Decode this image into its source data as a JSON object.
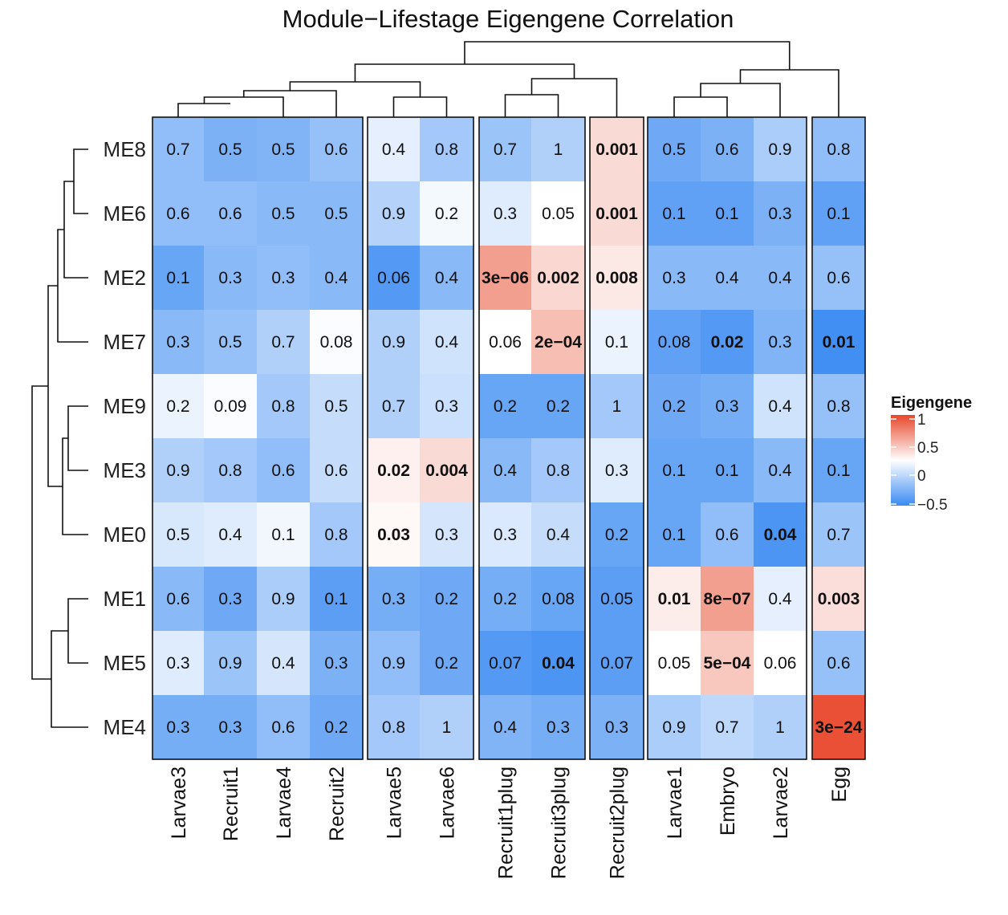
{
  "chart_data": {
    "type": "heatmap",
    "title": "Module−Lifestage Eigengene Correlation",
    "rows": [
      "ME8",
      "ME6",
      "ME2",
      "ME7",
      "ME9",
      "ME3",
      "ME0",
      "ME1",
      "ME5",
      "ME4"
    ],
    "columns": [
      "Larvae3",
      "Recruit1",
      "Larvae4",
      "Recruit2",
      "Larvae5",
      "Larvae6",
      "Recruit1plug",
      "Recruit3plug",
      "Recruit2plug",
      "Larvae1",
      "Embryo",
      "Larvae2",
      "Egg"
    ],
    "column_groups": [
      [
        0,
        3
      ],
      [
        4,
        5
      ],
      [
        6,
        7
      ],
      [
        8,
        8
      ],
      [
        9,
        11
      ],
      [
        12,
        12
      ]
    ],
    "legend": {
      "title": "Eigengene",
      "ticks": [
        "1",
        "0.5",
        "0",
        "−0.5"
      ],
      "colors": {
        "high": "#e8472a",
        "mid": "#ffffff",
        "low": "#3a8af2"
      }
    },
    "cells": [
      [
        {
          "label": "0.7",
          "value": -0.42
        },
        {
          "label": "0.5",
          "value": -0.5
        },
        {
          "label": "0.5",
          "value": -0.48
        },
        {
          "label": "0.6",
          "value": -0.4
        },
        {
          "label": "0.4",
          "value": -0.1
        },
        {
          "label": "0.8",
          "value": -0.35
        },
        {
          "label": "0.7",
          "value": -0.38
        },
        {
          "label": "1",
          "value": -0.3
        },
        {
          "label": "0.001",
          "value": 0.2,
          "bold": true
        },
        {
          "label": "0.5",
          "value": -0.55
        },
        {
          "label": "0.6",
          "value": -0.5
        },
        {
          "label": "0.9",
          "value": -0.32
        },
        {
          "label": "0.8",
          "value": -0.42
        }
      ],
      [
        {
          "label": "0.6",
          "value": -0.42
        },
        {
          "label": "0.6",
          "value": -0.42
        },
        {
          "label": "0.5",
          "value": -0.45
        },
        {
          "label": "0.5",
          "value": -0.45
        },
        {
          "label": "0.9",
          "value": -0.28
        },
        {
          "label": "0.2",
          "value": -0.04
        },
        {
          "label": "0.3",
          "value": -0.12
        },
        {
          "label": "0.05",
          "value": 0.0
        },
        {
          "label": "0.001",
          "value": 0.2,
          "bold": true
        },
        {
          "label": "0.1",
          "value": -0.6
        },
        {
          "label": "0.1",
          "value": -0.6
        },
        {
          "label": "0.3",
          "value": -0.5
        },
        {
          "label": "0.1",
          "value": -0.6
        }
      ],
      [
        {
          "label": "0.1",
          "value": -0.58
        },
        {
          "label": "0.3",
          "value": -0.45
        },
        {
          "label": "0.3",
          "value": -0.42
        },
        {
          "label": "0.4",
          "value": -0.45
        },
        {
          "label": "0.06",
          "value": -0.65
        },
        {
          "label": "0.4",
          "value": -0.45
        },
        {
          "label": "3e−06",
          "value": 0.52,
          "bold": true
        },
        {
          "label": "0.002",
          "value": 0.22,
          "bold": true
        },
        {
          "label": "0.008",
          "value": 0.12,
          "bold": true
        },
        {
          "label": "0.3",
          "value": -0.45
        },
        {
          "label": "0.4",
          "value": -0.45
        },
        {
          "label": "0.4",
          "value": -0.45
        },
        {
          "label": "0.6",
          "value": -0.4
        }
      ],
      [
        {
          "label": "0.3",
          "value": -0.45
        },
        {
          "label": "0.5",
          "value": -0.4
        },
        {
          "label": "0.7",
          "value": -0.3
        },
        {
          "label": "0.08",
          "value": -0.02
        },
        {
          "label": "0.9",
          "value": -0.3
        },
        {
          "label": "0.4",
          "value": -0.18
        },
        {
          "label": "0.06",
          "value": 0.0
        },
        {
          "label": "2e−04",
          "value": 0.35,
          "bold": true
        },
        {
          "label": "0.1",
          "value": -0.08
        },
        {
          "label": "0.08",
          "value": -0.6
        },
        {
          "label": "0.02",
          "value": -0.65,
          "bold": true
        },
        {
          "label": "0.3",
          "value": -0.48
        },
        {
          "label": "0.01",
          "value": -0.72,
          "bold": true
        }
      ],
      [
        {
          "label": "0.2",
          "value": -0.08
        },
        {
          "label": "0.09",
          "value": -0.02
        },
        {
          "label": "0.8",
          "value": -0.35
        },
        {
          "label": "0.5",
          "value": -0.22
        },
        {
          "label": "0.7",
          "value": -0.3
        },
        {
          "label": "0.3",
          "value": -0.2
        },
        {
          "label": "0.2",
          "value": -0.58
        },
        {
          "label": "0.2",
          "value": -0.58
        },
        {
          "label": "1",
          "value": -0.35
        },
        {
          "label": "0.2",
          "value": -0.55
        },
        {
          "label": "0.3",
          "value": -0.52
        },
        {
          "label": "0.4",
          "value": -0.18
        },
        {
          "label": "0.8",
          "value": -0.4
        }
      ],
      [
        {
          "label": "0.9",
          "value": -0.3
        },
        {
          "label": "0.8",
          "value": -0.35
        },
        {
          "label": "0.6",
          "value": -0.42
        },
        {
          "label": "0.6",
          "value": -0.22
        },
        {
          "label": "0.02",
          "value": 0.08,
          "bold": true
        },
        {
          "label": "0.004",
          "value": 0.2,
          "bold": true
        },
        {
          "label": "0.4",
          "value": -0.45
        },
        {
          "label": "0.8",
          "value": -0.35
        },
        {
          "label": "0.3",
          "value": -0.12
        },
        {
          "label": "0.1",
          "value": -0.58
        },
        {
          "label": "0.1",
          "value": -0.58
        },
        {
          "label": "0.4",
          "value": -0.45
        },
        {
          "label": "0.1",
          "value": -0.58
        }
      ],
      [
        {
          "label": "0.5",
          "value": -0.15
        },
        {
          "label": "0.4",
          "value": -0.12
        },
        {
          "label": "0.1",
          "value": -0.05
        },
        {
          "label": "0.8",
          "value": -0.35
        },
        {
          "label": "0.03",
          "value": 0.04,
          "bold": true
        },
        {
          "label": "0.3",
          "value": -0.16
        },
        {
          "label": "0.3",
          "value": -0.14
        },
        {
          "label": "0.4",
          "value": -0.22
        },
        {
          "label": "0.2",
          "value": -0.58
        },
        {
          "label": "0.1",
          "value": -0.58
        },
        {
          "label": "0.6",
          "value": -0.42
        },
        {
          "label": "0.04",
          "value": -0.68,
          "bold": true
        },
        {
          "label": "0.7",
          "value": -0.38
        }
      ],
      [
        {
          "label": "0.6",
          "value": -0.45
        },
        {
          "label": "0.3",
          "value": -0.55
        },
        {
          "label": "0.9",
          "value": -0.32
        },
        {
          "label": "0.1",
          "value": -0.62
        },
        {
          "label": "0.3",
          "value": -0.52
        },
        {
          "label": "0.2",
          "value": -0.55
        },
        {
          "label": "0.2",
          "value": -0.52
        },
        {
          "label": "0.08",
          "value": -0.58
        },
        {
          "label": "0.05",
          "value": -0.62
        },
        {
          "label": "0.01",
          "value": 0.1,
          "bold": true
        },
        {
          "label": "8e−07",
          "value": 0.52,
          "bold": true
        },
        {
          "label": "0.4",
          "value": -0.1
        },
        {
          "label": "0.003",
          "value": 0.18,
          "bold": true
        }
      ],
      [
        {
          "label": "0.3",
          "value": -0.12
        },
        {
          "label": "0.9",
          "value": -0.38
        },
        {
          "label": "0.4",
          "value": -0.16
        },
        {
          "label": "0.3",
          "value": -0.5
        },
        {
          "label": "0.9",
          "value": -0.42
        },
        {
          "label": "0.2",
          "value": -0.55
        },
        {
          "label": "0.07",
          "value": -0.65
        },
        {
          "label": "0.04",
          "value": -0.68,
          "bold": true
        },
        {
          "label": "0.07",
          "value": -0.62
        },
        {
          "label": "0.05",
          "value": 0.0
        },
        {
          "label": "5e−04",
          "value": 0.3,
          "bold": true
        },
        {
          "label": "0.06",
          "value": 0.0
        },
        {
          "label": "0.6",
          "value": -0.4
        }
      ],
      [
        {
          "label": "0.3",
          "value": -0.52
        },
        {
          "label": "0.3",
          "value": -0.52
        },
        {
          "label": "0.6",
          "value": -0.42
        },
        {
          "label": "0.2",
          "value": -0.55
        },
        {
          "label": "0.8",
          "value": -0.35
        },
        {
          "label": "1",
          "value": -0.3
        },
        {
          "label": "0.4",
          "value": -0.48
        },
        {
          "label": "0.3",
          "value": -0.52
        },
        {
          "label": "0.3",
          "value": -0.5
        },
        {
          "label": "0.9",
          "value": -0.32
        },
        {
          "label": "0.7",
          "value": -0.25
        },
        {
          "label": "1",
          "value": -0.3
        },
        {
          "label": "3e−24",
          "value": 0.95,
          "bold": true
        }
      ]
    ]
  }
}
